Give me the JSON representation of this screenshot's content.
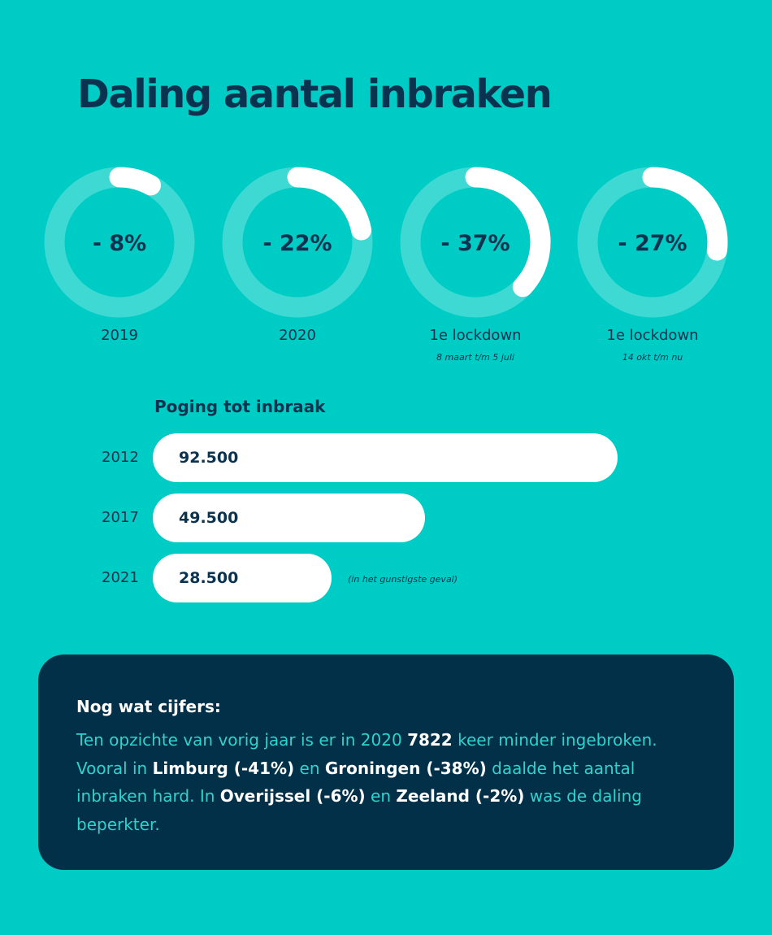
{
  "title": "Daling aantal inbraken",
  "colors": {
    "background": "#00ccc6",
    "ring_track": "#3fd9d3",
    "ring_fill": "#ffffff",
    "text_dark": "#0b3350",
    "box": "#023049",
    "box_text": "#2fd3cc"
  },
  "chart_data": [
    {
      "type": "pie",
      "style": "progress-rings",
      "items": [
        {
          "value_label": "- 8%",
          "value": 8,
          "label": "2019",
          "sublabel": ""
        },
        {
          "value_label": "- 22%",
          "value": 22,
          "label": "2020",
          "sublabel": ""
        },
        {
          "value_label": "- 37%",
          "value": 37,
          "label": "1e lockdown",
          "sublabel": "8 maart t/m 5 juli"
        },
        {
          "value_label": "- 27%",
          "value": 27,
          "label": "1e lockdown",
          "sublabel": "14 okt t/m nu"
        }
      ]
    },
    {
      "type": "bar",
      "orientation": "horizontal",
      "title": "Poging tot inbraak",
      "categories": [
        "2012",
        "2017",
        "2021"
      ],
      "values": [
        92500,
        49500,
        28500
      ],
      "value_labels": [
        "92.500",
        "49.500",
        "28.500"
      ],
      "note": "(in het gunstigste geval)"
    }
  ],
  "info_box": {
    "heading": "Nog wat cijfers:",
    "p1": "Ten opzichte van vorig jaar is er in 2020 ",
    "b1": "7822",
    "p2": " keer minder ingebroken. Vooral in ",
    "b2": "Limburg (-41%)",
    "p3": " en ",
    "b3": "Groningen (-38%)",
    "p4": " daalde het aantal inbraken hard. In ",
    "b4": "Overijssel (-6%)",
    "p5": " en ",
    "b5": "Zeeland (-2%)",
    "p6": " was de daling beperkter."
  }
}
